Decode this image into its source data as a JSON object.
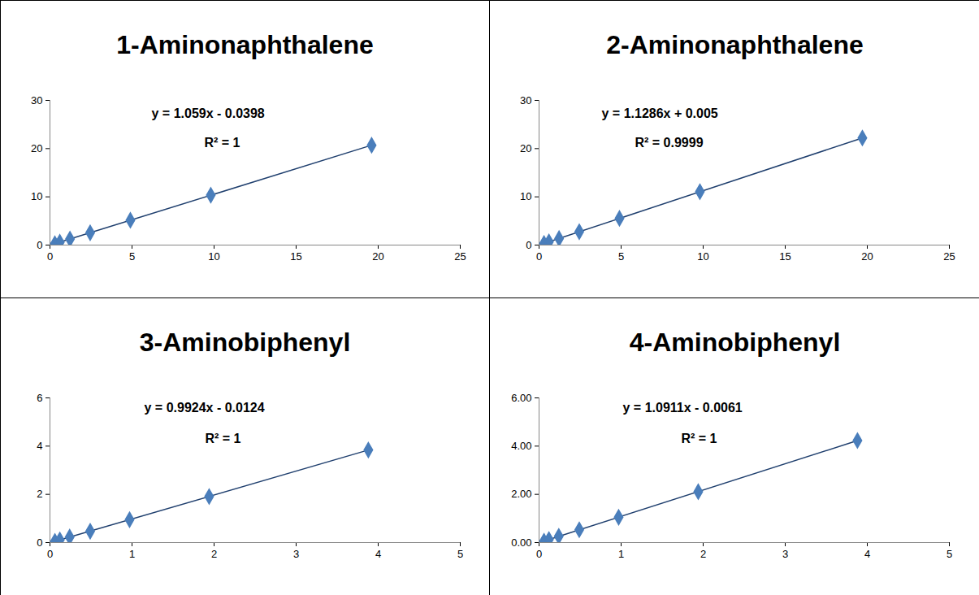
{
  "chart_data": [
    {
      "type": "scatter",
      "title": "1-Aminonaphthalene",
      "annotations": [
        "y = 1.059x - 0.0398",
        "R² = 1"
      ],
      "x": [
        0.3,
        0.6,
        1.22,
        2.45,
        4.9,
        9.8,
        19.6
      ],
      "values": [
        0.28,
        0.6,
        1.25,
        2.55,
        5.15,
        10.35,
        20.7
      ],
      "color": "#4a7ebb",
      "marker": "diamond",
      "line_style": "solid",
      "xlim": [
        0,
        25
      ],
      "xticks": [
        0,
        5,
        10,
        15,
        20,
        25
      ],
      "ylim": [
        0,
        30
      ],
      "yticks": [
        0,
        10,
        20,
        30
      ]
    },
    {
      "type": "scatter",
      "title": "2-Aminonaphthalene",
      "annotations": [
        "y = 1.1286x + 0.005",
        "R² = 0.9999"
      ],
      "x": [
        0.3,
        0.6,
        1.22,
        2.45,
        4.9,
        9.8,
        19.7
      ],
      "values": [
        0.34,
        0.68,
        1.36,
        2.77,
        5.54,
        11.07,
        22.2
      ],
      "color": "#4a7ebb",
      "marker": "diamond",
      "line_style": "solid",
      "xlim": [
        0,
        25
      ],
      "xticks": [
        0,
        5,
        10,
        15,
        20,
        25
      ],
      "ylim": [
        0,
        30
      ],
      "yticks": [
        0,
        10,
        20,
        30
      ]
    },
    {
      "type": "scatter",
      "title": "3-Aminobiphenyl",
      "annotations": [
        "y = 0.9924x - 0.0124",
        "R² = 1"
      ],
      "x": [
        0.06,
        0.12,
        0.24,
        0.49,
        0.97,
        1.94,
        3.88
      ],
      "values": [
        0.05,
        0.11,
        0.23,
        0.47,
        0.95,
        1.91,
        3.84
      ],
      "color": "#4a7ebb",
      "marker": "diamond",
      "line_style": "solid",
      "xlim": [
        0,
        5
      ],
      "xticks": [
        0,
        1,
        2,
        3,
        4,
        5
      ],
      "ylim": [
        0,
        6
      ],
      "yticks": [
        0,
        2,
        4,
        6
      ]
    },
    {
      "type": "scatter",
      "title": "4-Aminobiphenyl",
      "annotations": [
        "y = 1.0911x - 0.0061",
        "R² = 1"
      ],
      "x": [
        0.06,
        0.12,
        0.24,
        0.49,
        0.97,
        1.94,
        3.88
      ],
      "values": [
        0.06,
        0.125,
        0.26,
        0.53,
        1.05,
        2.11,
        4.23
      ],
      "color": "#4a7ebb",
      "marker": "diamond",
      "line_style": "solid",
      "xlim": [
        0,
        5
      ],
      "xticks": [
        0,
        1,
        2,
        3,
        4,
        5
      ],
      "ylim": [
        0,
        6
      ],
      "yticks": [
        {
          "value": 0,
          "label": "0.00"
        },
        {
          "value": 2,
          "label": "2.00"
        },
        {
          "value": 4,
          "label": "4.00"
        },
        {
          "value": 6,
          "label": "6.00"
        }
      ]
    }
  ]
}
